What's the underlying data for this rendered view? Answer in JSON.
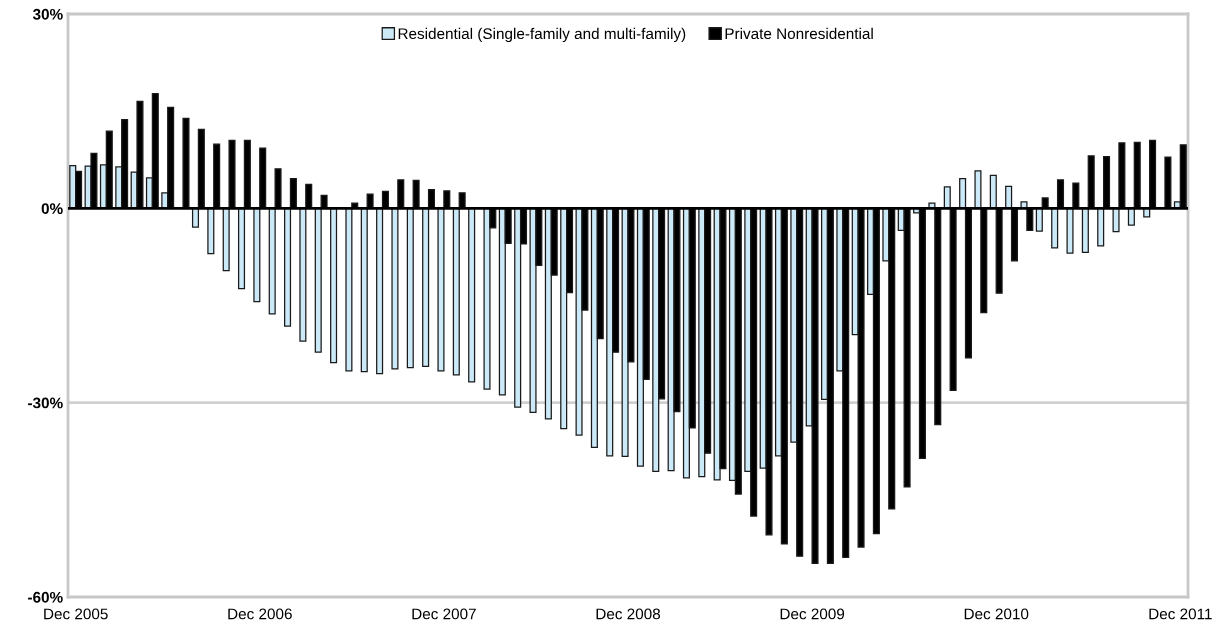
{
  "chart_data": {
    "type": "bar",
    "categories": [
      "Dec 2005",
      null,
      null,
      null,
      null,
      null,
      null,
      null,
      null,
      null,
      null,
      null,
      "Dec 2006",
      null,
      null,
      null,
      null,
      null,
      null,
      null,
      null,
      null,
      null,
      null,
      "Dec 2007",
      null,
      null,
      null,
      null,
      null,
      null,
      null,
      null,
      null,
      null,
      null,
      "Dec 2008",
      null,
      null,
      null,
      null,
      null,
      null,
      null,
      null,
      null,
      null,
      null,
      "Dec 2009",
      null,
      null,
      null,
      null,
      null,
      null,
      null,
      null,
      null,
      null,
      null,
      "Dec 2010",
      null,
      null,
      null,
      null,
      null,
      null,
      null,
      null,
      null,
      null,
      null,
      "Dec 2011"
    ],
    "series": [
      {
        "name": "Residential (Single-family and multi-family)",
        "color": "#cce9f8",
        "values": [
          6.6,
          6.5,
          6.7,
          6.4,
          5.6,
          4.7,
          2.4,
          null,
          -2.9,
          -7.0,
          -9.6,
          -12.4,
          -14.4,
          -16.3,
          -18.2,
          -20.5,
          -22.2,
          -23.8,
          -25.1,
          -25.2,
          -25.5,
          -24.8,
          -24.6,
          -24.4,
          -25.1,
          -25.7,
          -26.8,
          -27.9,
          -28.8,
          -30.7,
          -31.5,
          -32.5,
          -34.0,
          -35.0,
          -36.9,
          -38.2,
          -38.3,
          -39.8,
          -40.6,
          -40.5,
          -41.6,
          -41.4,
          -41.9,
          -42.0,
          -40.6,
          -40.1,
          -38.2,
          -36.1,
          -33.6,
          -29.5,
          -25.1,
          -19.5,
          -13.3,
          -8.1,
          -3.4,
          -0.7,
          0.8,
          3.3,
          4.6,
          5.8,
          5.1,
          3.4,
          1.0,
          -3.5,
          -6.1,
          -6.9,
          -6.8,
          -5.8,
          -3.6,
          -2.6,
          -1.3,
          0,
          1.0
        ]
      },
      {
        "name": "Private Nonresidential",
        "color": "#000000",
        "values": [
          5.7,
          8.5,
          11.9,
          13.7,
          16.5,
          17.7,
          15.6,
          13.9,
          12.2,
          9.9,
          10.5,
          10.5,
          9.3,
          6.1,
          4.6,
          3.7,
          2.0,
          0,
          0.8,
          2.2,
          2.6,
          4.4,
          4.3,
          2.9,
          2.7,
          2.4,
          0,
          -3.0,
          -5.4,
          -5.5,
          -8.8,
          -10.3,
          -13.0,
          -15.7,
          -20.1,
          -22.2,
          -23.7,
          -26.4,
          -29.4,
          -31.4,
          -33.9,
          -37.8,
          -40.2,
          -44.1,
          -47.5,
          -50.4,
          -51.8,
          -53.7,
          -54.8,
          -54.8,
          -53.9,
          -52.3,
          -50.2,
          -46.4,
          -43.0,
          -38.6,
          -33.4,
          -28.1,
          -23.1,
          -16.1,
          -13.1,
          -8.1,
          -3.4,
          1.6,
          4.4,
          3.9,
          8.1,
          8.0,
          10.1,
          10.2,
          10.5,
          7.9,
          9.8
        ]
      }
    ],
    "ylim": [
      -60,
      30
    ],
    "yticks": [
      {
        "value": -60,
        "label": "-60%"
      },
      {
        "value": -30,
        "label": "-30%"
      },
      {
        "value": 0,
        "label": "0%"
      },
      {
        "value": 30,
        "label": "30%"
      }
    ],
    "ref_lines": [
      {
        "axis": "y",
        "value": 0,
        "color": "#000000"
      },
      {
        "axis": "y",
        "value": -30,
        "color": "#d0d0d0"
      }
    ],
    "legend": "top"
  }
}
